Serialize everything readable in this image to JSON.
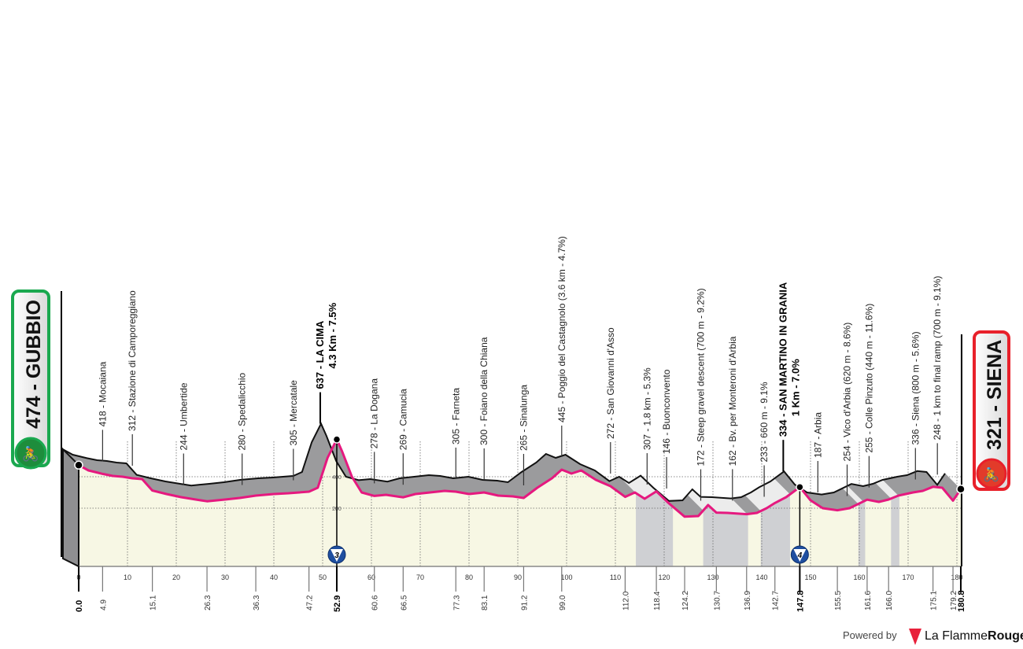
{
  "chart_data": {
    "type": "area",
    "title": "",
    "xlabel": "",
    "ylabel": "",
    "xlim": [
      0,
      180.8
    ],
    "ylim": [
      0,
      650
    ],
    "y_grid_labels": [
      "200",
      "400"
    ],
    "x_ticks": [
      0,
      10,
      20,
      30,
      40,
      50,
      60,
      70,
      80,
      90,
      100,
      110,
      120,
      130,
      140,
      150,
      160,
      170,
      180
    ],
    "profile": [
      [
        0,
        474
      ],
      [
        2,
        440
      ],
      [
        4.9,
        418
      ],
      [
        7,
        405
      ],
      [
        9,
        400
      ],
      [
        11,
        390
      ],
      [
        13,
        385
      ],
      [
        15.1,
        312
      ],
      [
        18,
        290
      ],
      [
        21,
        270
      ],
      [
        24,
        255
      ],
      [
        26.3,
        244
      ],
      [
        30,
        255
      ],
      [
        33,
        265
      ],
      [
        36.3,
        280
      ],
      [
        40,
        290
      ],
      [
        43,
        295
      ],
      [
        47.2,
        305
      ],
      [
        49,
        330
      ],
      [
        51,
        520
      ],
      [
        52.9,
        637
      ],
      [
        54,
        560
      ],
      [
        56,
        400
      ],
      [
        58,
        300
      ],
      [
        60.6,
        278
      ],
      [
        63,
        285
      ],
      [
        66.5,
        269
      ],
      [
        69,
        290
      ],
      [
        72,
        300
      ],
      [
        75,
        310
      ],
      [
        77.3,
        305
      ],
      [
        80,
        290
      ],
      [
        83.1,
        300
      ],
      [
        86,
        280
      ],
      [
        89,
        275
      ],
      [
        91.2,
        265
      ],
      [
        94,
        330
      ],
      [
        97,
        390
      ],
      [
        99.0,
        445
      ],
      [
        101,
        420
      ],
      [
        103,
        440
      ],
      [
        106,
        380
      ],
      [
        109,
        340
      ],
      [
        112.0,
        272
      ],
      [
        114,
        300
      ],
      [
        116,
        260
      ],
      [
        118.4,
        307
      ],
      [
        121,
        230
      ],
      [
        124.2,
        146
      ],
      [
        127,
        150
      ],
      [
        129,
        220
      ],
      [
        130.7,
        172
      ],
      [
        133,
        170
      ],
      [
        136.9,
        162
      ],
      [
        139,
        170
      ],
      [
        141,
        200
      ],
      [
        142.7,
        233
      ],
      [
        145,
        270
      ],
      [
        147.8,
        334
      ],
      [
        150,
        250
      ],
      [
        152.5,
        200
      ],
      [
        155.5,
        187
      ],
      [
        158,
        200
      ],
      [
        161.6,
        254
      ],
      [
        164,
        240
      ],
      [
        166.0,
        255
      ],
      [
        168,
        280
      ],
      [
        171,
        300
      ],
      [
        173,
        310
      ],
      [
        175.1,
        336
      ],
      [
        177,
        330
      ],
      [
        179.2,
        248
      ],
      [
        180.8,
        321
      ]
    ],
    "waypoints": [
      {
        "km": 4.9,
        "label": "418 - Mocaiana"
      },
      {
        "km": 11,
        "label": "312 - Stazione di Camporeggiano"
      },
      {
        "km": 21.5,
        "label": "244 - Umbertide"
      },
      {
        "km": 33.5,
        "label": "280 - Spedalicchio"
      },
      {
        "km": 44,
        "label": "305 - Mercatale"
      },
      {
        "km": 60.6,
        "label": "278 - La Dogana"
      },
      {
        "km": 66.5,
        "label": "269 - Camucia"
      },
      {
        "km": 77.3,
        "label": "305 - Farneta"
      },
      {
        "km": 83.1,
        "label": "300 - Foiano della Chiana"
      },
      {
        "km": 91.2,
        "label": "265 - Sinalunga"
      },
      {
        "km": 99.0,
        "label": "445 - Poggio del Castagnolo (3.6 km - 4.7%)"
      },
      {
        "km": 109,
        "label": "272 - San Giovanni d'Asso"
      },
      {
        "km": 116.5,
        "label": "307 - 1.8 km - 5.3%"
      },
      {
        "km": 120.5,
        "label": "146 - Buonconvento"
      },
      {
        "km": 127.5,
        "label": "172 - Steep gravel descent (700 m - 9.2%)"
      },
      {
        "km": 134,
        "label": "162 - Bv. per Monteroni d'Arbia"
      },
      {
        "km": 140.5,
        "label": "233 - 660 m - 9.1%"
      },
      {
        "km": 151.5,
        "label": "187 - Arbia"
      },
      {
        "km": 157.5,
        "label": "254 - Vico d'Arbia (620 m - 8.6%)"
      },
      {
        "km": 162,
        "label": "255 - Colle Pinzuto (440 m - 11.6%)"
      },
      {
        "km": 171.5,
        "label": "336 - Siena (800 m - 5.6%)"
      },
      {
        "km": 176,
        "label": "248 - 1 km to final ramp (700 m - 9.1%)"
      }
    ],
    "climbs": [
      {
        "km": 52.9,
        "label1": "637 - LA CIMA",
        "label2": "4.3 Km - 7.5%",
        "category": "3"
      },
      {
        "km": 147.8,
        "label1": "334 - SAN MARTINO IN GRANIA",
        "label2": "1 Km - 7.0%",
        "category": "4"
      }
    ],
    "distance_marks": [
      "0.0",
      "4.9",
      "15.1",
      "26.3",
      "36.3",
      "47.2",
      "52.9",
      "60.6",
      "66.5",
      "77.3",
      "83.1",
      "91.2",
      "99.0",
      "112.0",
      "118.4",
      "124.2",
      "130.7",
      "136.9",
      "142.7",
      "147.8",
      "155.5",
      "161.6",
      "166.0",
      "175.1",
      "179.2",
      "180.8"
    ],
    "bold_distance_marks": [
      "0.0",
      "52.9",
      "147.8",
      "180.8"
    ],
    "gravel_sectors": [
      [
        114.2,
        121.8
      ],
      [
        128.0,
        137.2
      ],
      [
        139.8,
        145.8
      ],
      [
        159.8,
        161.2
      ],
      [
        166.5,
        168.2
      ]
    ]
  },
  "start": {
    "label": "474 - GUBBIO",
    "color": "#1aa84f"
  },
  "finish": {
    "label": "321 - SIENA",
    "color": "#e8202a"
  },
  "colors": {
    "profile_line": "#e5197f",
    "relief": "#9b9b9d",
    "fill": "#f7f7e4",
    "gravel": "#cfd0d3",
    "climb_badge": "#1f4fa0"
  },
  "footer": {
    "powered_by": "Powered by",
    "brand_light": "La Flamme",
    "brand_bold": "Rouge"
  }
}
